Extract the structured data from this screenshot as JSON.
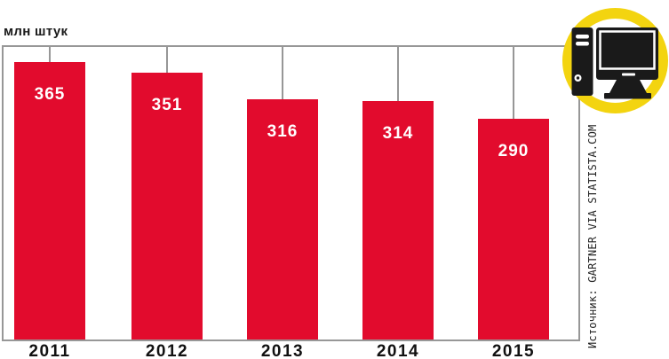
{
  "header": {
    "units_label": "млн штук"
  },
  "source": {
    "text": "Источник: GARTNER VIA STATISTA.COM"
  },
  "icon": {
    "name": "desktop-computer",
    "ring_color": "#f3d410",
    "glyph_color": "#1a1a1a"
  },
  "chart_data": {
    "type": "bar",
    "title": "",
    "ylabel": "млн штук",
    "xlabel": "",
    "categories": [
      "2011",
      "2012",
      "2013",
      "2014",
      "2015"
    ],
    "values": [
      365,
      351,
      316,
      314,
      290
    ],
    "ylim": [
      0,
      400
    ],
    "grid": false,
    "legend": false,
    "bar_color": "#e20b2d",
    "value_label_color": "#ffffff",
    "axis_line_color": "#979797",
    "text_color": "#111111"
  }
}
